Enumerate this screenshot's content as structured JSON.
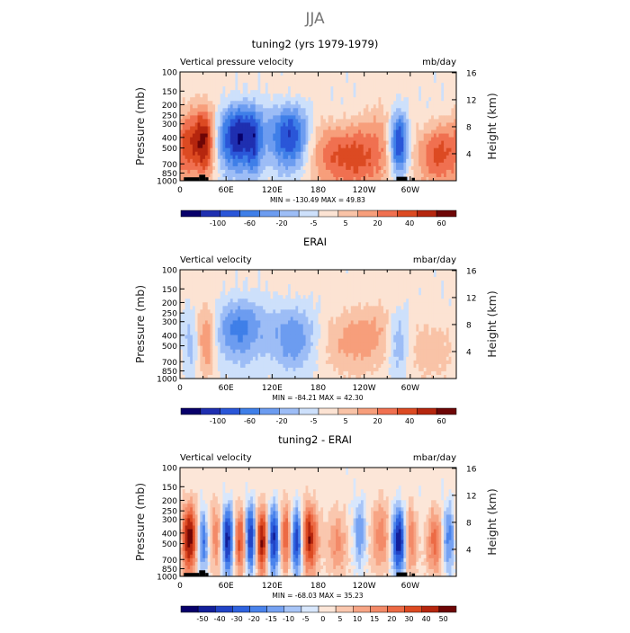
{
  "page_title": "JJA",
  "colors": {
    "contour_13": [
      "#08006a",
      "#1f2fb0",
      "#2a56d8",
      "#3f7fe8",
      "#6c9cf0",
      "#9dbdf6",
      "#cde0fb",
      "#fce3d3",
      "#f9c3a7",
      "#f79e7b",
      "#f07050",
      "#dc4a22",
      "#b5260e",
      "#6e0606"
    ],
    "contour_16": [
      "#08006a",
      "#13209a",
      "#2244c6",
      "#2f63df",
      "#4a83eb",
      "#76a2f2",
      "#a8c5f7",
      "#d8e7fc",
      "#fce6d8",
      "#fac7ae",
      "#f7a585",
      "#f38a68",
      "#ec6a45",
      "#dc4a22",
      "#b5260e",
      "#6e0606"
    ],
    "terrain": "#000000"
  },
  "chart_data": [
    {
      "type": "heatmap",
      "panel": "top",
      "title": "tuning2 (yrs 1979-1979)",
      "left_label": "Vertical pressure velocity",
      "units": "mb/day",
      "ylabel": "Pressure (mb)",
      "ylabel_right": "Height (km)",
      "yticks": [
        "100",
        "150",
        "200",
        "250",
        "300",
        "400",
        "500",
        "700",
        "850",
        "1000"
      ],
      "yticks_right": [
        "16",
        "12",
        "8",
        "4"
      ],
      "xticks": [
        "0",
        "60E",
        "120E",
        "180",
        "120W",
        "60W"
      ],
      "stats_text": "MIN = -130.49   MAX =  49.83",
      "colorbar_labels": [
        "-100",
        "-60",
        "-20",
        "-5",
        "5",
        "20",
        "40",
        "60"
      ],
      "palette": "contour_13",
      "anomaly_amp": 1.0,
      "dipole_amp": 0.3,
      "terrain": true,
      "blobs": [
        {
          "lon": 13,
          "w": 10,
          "p": 450,
          "v": 0.42
        },
        {
          "lon": 33,
          "w": 9,
          "p": 450,
          "v": 0.78
        },
        {
          "lon": 75,
          "w": 20,
          "p": 400,
          "v": -0.85
        },
        {
          "lon": 97,
          "w": 6,
          "p": 500,
          "v": -0.3
        },
        {
          "lon": 145,
          "w": 19,
          "p": 380,
          "v": -0.95
        },
        {
          "lon": 185,
          "w": 28,
          "p": 500,
          "v": 0.25
        },
        {
          "lon": 232,
          "w": 34,
          "p": 600,
          "v": 0.55
        },
        {
          "lon": 285,
          "w": 9,
          "p": 450,
          "v": -0.95
        },
        {
          "lon": 338,
          "w": 20,
          "p": 550,
          "v": 0.6
        }
      ]
    },
    {
      "type": "heatmap",
      "panel": "middle",
      "title": "ERAI",
      "left_label": "Vertical velocity",
      "units": "mbar/day",
      "ylabel": "Pressure (mb)",
      "ylabel_right": "Height (km)",
      "yticks": [
        "100",
        "150",
        "200",
        "250",
        "300",
        "400",
        "500",
        "700",
        "850",
        "1000"
      ],
      "yticks_right": [
        "16",
        "12",
        "8",
        "4"
      ],
      "xticks": [
        "0",
        "60E",
        "120E",
        "180",
        "120W",
        "60W"
      ],
      "stats_text": "MIN = -84.21   MAX =  42.30",
      "colorbar_labels": [
        "-100",
        "-60",
        "-20",
        "-5",
        "5",
        "20",
        "40",
        "60"
      ],
      "palette": "contour_13",
      "anomaly_amp": 0.72,
      "dipole_amp": 0.25,
      "terrain": false,
      "blobs": [
        {
          "lon": 15,
          "w": 10,
          "p": 450,
          "v": -0.45
        },
        {
          "lon": 33,
          "w": 9,
          "p": 450,
          "v": 0.65
        },
        {
          "lon": 75,
          "w": 24,
          "p": 350,
          "v": -0.65
        },
        {
          "lon": 150,
          "w": 22,
          "p": 400,
          "v": -0.72
        },
        {
          "lon": 225,
          "w": 35,
          "p": 420,
          "v": 0.5
        },
        {
          "lon": 285,
          "w": 10,
          "p": 450,
          "v": -0.55
        },
        {
          "lon": 328,
          "w": 25,
          "p": 500,
          "v": 0.3
        }
      ]
    },
    {
      "type": "heatmap",
      "panel": "bottom",
      "title": "tuning2 - ERAI",
      "left_label": "Vertical velocity",
      "units": "mbar/day",
      "ylabel": "Pressure (mb)",
      "ylabel_right": "Height (km)",
      "yticks": [
        "100",
        "150",
        "200",
        "250",
        "300",
        "400",
        "500",
        "700",
        "850",
        "1000"
      ],
      "yticks_right": [
        "16",
        "12",
        "8",
        "4"
      ],
      "xticks": [
        "0",
        "60E",
        "120E",
        "180",
        "120W",
        "60W"
      ],
      "stats_text": "MIN = -68.03   MAX =  35.23",
      "colorbar_labels": [
        "-50",
        "-40",
        "-30",
        "-20",
        "-15",
        "-10",
        "-5",
        "0",
        "5",
        "10",
        "15",
        "20",
        "30",
        "40",
        "50"
      ],
      "palette": "contour_16",
      "anomaly_amp": 1.0,
      "dipole_amp": 0.2,
      "terrain": true,
      "blobs": [
        {
          "lon": 12,
          "w": 7,
          "p": 450,
          "v": 0.9
        },
        {
          "lon": 30,
          "w": 5,
          "p": 450,
          "v": -0.6
        },
        {
          "lon": 48,
          "w": 6,
          "p": 450,
          "v": 0.4
        },
        {
          "lon": 62,
          "w": 6,
          "p": 450,
          "v": -0.9
        },
        {
          "lon": 78,
          "w": 6,
          "p": 450,
          "v": 0.7
        },
        {
          "lon": 92,
          "w": 5,
          "p": 450,
          "v": -0.85
        },
        {
          "lon": 107,
          "w": 6,
          "p": 450,
          "v": 0.95
        },
        {
          "lon": 122,
          "w": 6,
          "p": 450,
          "v": -0.9
        },
        {
          "lon": 138,
          "w": 6,
          "p": 450,
          "v": 0.6
        },
        {
          "lon": 152,
          "w": 6,
          "p": 450,
          "v": -0.95
        },
        {
          "lon": 168,
          "w": 8,
          "p": 450,
          "v": 0.8
        },
        {
          "lon": 205,
          "w": 10,
          "p": 450,
          "v": 0.4
        },
        {
          "lon": 235,
          "w": 6,
          "p": 400,
          "v": -0.4
        },
        {
          "lon": 262,
          "w": 10,
          "p": 450,
          "v": 0.35
        },
        {
          "lon": 285,
          "w": 7,
          "p": 450,
          "v": -0.98
        },
        {
          "lon": 300,
          "w": 6,
          "p": 450,
          "v": 0.5
        },
        {
          "lon": 332,
          "w": 8,
          "p": 450,
          "v": 0.55
        },
        {
          "lon": 350,
          "w": 6,
          "p": 450,
          "v": -0.5
        }
      ]
    }
  ]
}
